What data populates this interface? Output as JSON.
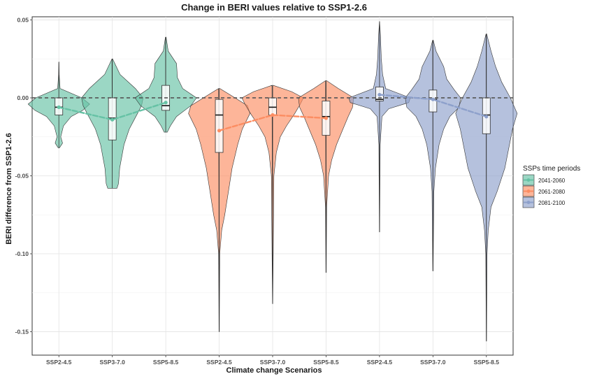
{
  "chart_data": {
    "type": "violin",
    "title": "Change in BERI values relative to SSP1-2.6",
    "xlabel": "Climate change Scenarios",
    "ylabel": "BERI difference from SSP1-2.6",
    "ylim": [
      -0.165,
      0.052
    ],
    "yticks": [
      0.05,
      0.0,
      -0.05,
      -0.1,
      -0.15
    ],
    "ytick_labels": [
      "0.05",
      "0.00",
      "-0.05",
      "-0.10",
      "-0.15"
    ],
    "reference_line": 0.0,
    "grid": true,
    "legend_position": "right",
    "legend": {
      "title": "SSPs time periods",
      "entries": [
        {
          "label": "2041-2060",
          "color": "#66c2a5"
        },
        {
          "label": "2061-2080",
          "color": "#fc8d62"
        },
        {
          "label": "2081-2100",
          "color": "#8da0cb"
        }
      ]
    },
    "categories": [
      "SSP2-4.5",
      "SSP3-7.0",
      "SSP5-8.5",
      "SSP2-4.5",
      "SSP3-7.0",
      "SSP5-8.5",
      "SSP2-4.5",
      "SSP3-7.0",
      "SSP5-8.5"
    ],
    "series": [
      {
        "name": "2041-2060",
        "color": "#66c2a5",
        "mean": [
          -0.006,
          -0.014,
          -0.003
        ],
        "box": [
          {
            "q1": -0.011,
            "median": -0.006,
            "q3": 0.0
          },
          {
            "q1": -0.027,
            "median": -0.013,
            "q3": 0.0
          },
          {
            "q1": -0.008,
            "median": -0.005,
            "q3": 0.008
          }
        ],
        "range": [
          {
            "min": -0.032,
            "max": 0.023
          },
          {
            "min": -0.058,
            "max": 0.025
          },
          {
            "min": -0.022,
            "max": 0.039
          }
        ],
        "profile": [
          [
            [
              0.023,
              0.003
            ],
            [
              0.015,
              0.01
            ],
            [
              0.006,
              0.04
            ],
            [
              0.0,
              0.75
            ],
            [
              -0.004,
              1.0
            ],
            [
              -0.008,
              0.78
            ],
            [
              -0.012,
              0.4
            ],
            [
              -0.018,
              0.15
            ],
            [
              -0.025,
              0.06
            ],
            [
              -0.029,
              0.12
            ],
            [
              -0.032,
              0.02
            ]
          ],
          [
            [
              0.025,
              0.01
            ],
            [
              0.015,
              0.25
            ],
            [
              0.006,
              0.75
            ],
            [
              0.0,
              1.0
            ],
            [
              -0.005,
              0.95
            ],
            [
              -0.01,
              0.82
            ],
            [
              -0.02,
              0.55
            ],
            [
              -0.03,
              0.38
            ],
            [
              -0.045,
              0.24
            ],
            [
              -0.055,
              0.2
            ],
            [
              -0.058,
              0.15
            ]
          ],
          [
            [
              0.039,
              0.01
            ],
            [
              0.03,
              0.08
            ],
            [
              0.022,
              0.35
            ],
            [
              0.013,
              0.38
            ],
            [
              0.006,
              0.55
            ],
            [
              0.0,
              1.0
            ],
            [
              -0.005,
              0.82
            ],
            [
              -0.012,
              0.35
            ],
            [
              -0.018,
              0.15
            ],
            [
              -0.022,
              0.05
            ]
          ]
        ]
      },
      {
        "name": "2061-2080",
        "color": "#fc8d62",
        "mean": [
          -0.021,
          -0.011,
          -0.013
        ],
        "box": [
          {
            "q1": -0.035,
            "median": -0.011,
            "q3": -0.001
          },
          {
            "q1": -0.011,
            "median": -0.006,
            "q3": 0.0
          },
          {
            "q1": -0.024,
            "median": -0.012,
            "q3": -0.002
          }
        ],
        "range": [
          {
            "min": -0.15,
            "max": 0.006
          },
          {
            "min": -0.132,
            "max": 0.008
          },
          {
            "min": -0.112,
            "max": 0.011
          }
        ],
        "profile": [
          [
            [
              0.006,
              0.02
            ],
            [
              0.002,
              0.35
            ],
            [
              -0.005,
              0.92
            ],
            [
              -0.01,
              1.0
            ],
            [
              -0.02,
              0.75
            ],
            [
              -0.03,
              0.6
            ],
            [
              -0.045,
              0.42
            ],
            [
              -0.06,
              0.3
            ],
            [
              -0.075,
              0.18
            ],
            [
              -0.085,
              0.08
            ],
            [
              -0.1,
              0.02
            ],
            [
              -0.15,
              0.005
            ]
          ],
          [
            [
              0.008,
              0.02
            ],
            [
              0.004,
              0.62
            ],
            [
              0.0,
              1.0
            ],
            [
              -0.004,
              0.9
            ],
            [
              -0.01,
              0.72
            ],
            [
              -0.018,
              0.45
            ],
            [
              -0.025,
              0.25
            ],
            [
              -0.035,
              0.12
            ],
            [
              -0.05,
              0.04
            ],
            [
              -0.132,
              0.005
            ]
          ],
          [
            [
              0.011,
              0.02
            ],
            [
              0.006,
              0.4
            ],
            [
              0.0,
              0.9
            ],
            [
              -0.006,
              0.86
            ],
            [
              -0.012,
              0.72
            ],
            [
              -0.02,
              0.55
            ],
            [
              -0.03,
              0.34
            ],
            [
              -0.04,
              0.18
            ],
            [
              -0.05,
              0.08
            ],
            [
              -0.07,
              0.02
            ],
            [
              -0.112,
              0.005
            ]
          ]
        ]
      },
      {
        "name": "2081-2100",
        "color": "#8da0cb",
        "mean": [
          0.002,
          -0.001,
          -0.012
        ],
        "box": [
          {
            "q1": -0.002,
            "median": -0.001,
            "q3": 0.007
          },
          {
            "q1": -0.009,
            "median": -0.001,
            "q3": 0.005
          },
          {
            "q1": -0.023,
            "median": -0.011,
            "q3": 0.0
          }
        ],
        "range": [
          {
            "min": -0.086,
            "max": 0.049
          },
          {
            "min": -0.111,
            "max": 0.037
          },
          {
            "min": -0.156,
            "max": 0.041
          }
        ],
        "profile": [
          [
            [
              0.049,
              0.003
            ],
            [
              0.04,
              0.03
            ],
            [
              0.025,
              0.06
            ],
            [
              0.015,
              0.1
            ],
            [
              0.006,
              0.2
            ],
            [
              0.0,
              1.0
            ],
            [
              -0.003,
              0.95
            ],
            [
              -0.007,
              0.3
            ],
            [
              -0.012,
              0.08
            ],
            [
              -0.03,
              0.02
            ],
            [
              -0.086,
              0.005
            ]
          ],
          [
            [
              0.037,
              0.01
            ],
            [
              0.03,
              0.1
            ],
            [
              0.02,
              0.35
            ],
            [
              0.012,
              0.45
            ],
            [
              0.005,
              0.7
            ],
            [
              0.0,
              0.9
            ],
            [
              -0.006,
              0.85
            ],
            [
              -0.012,
              0.55
            ],
            [
              -0.02,
              0.35
            ],
            [
              -0.03,
              0.2
            ],
            [
              -0.045,
              0.08
            ],
            [
              -0.06,
              0.03
            ],
            [
              -0.111,
              0.005
            ]
          ],
          [
            [
              0.041,
              0.01
            ],
            [
              0.03,
              0.15
            ],
            [
              0.02,
              0.3
            ],
            [
              0.01,
              0.5
            ],
            [
              0.0,
              0.78
            ],
            [
              -0.01,
              1.0
            ],
            [
              -0.02,
              0.85
            ],
            [
              -0.03,
              0.75
            ],
            [
              -0.045,
              0.6
            ],
            [
              -0.06,
              0.35
            ],
            [
              -0.07,
              0.15
            ],
            [
              -0.085,
              0.06
            ],
            [
              -0.1,
              0.02
            ],
            [
              -0.156,
              0.005
            ]
          ]
        ]
      }
    ]
  }
}
